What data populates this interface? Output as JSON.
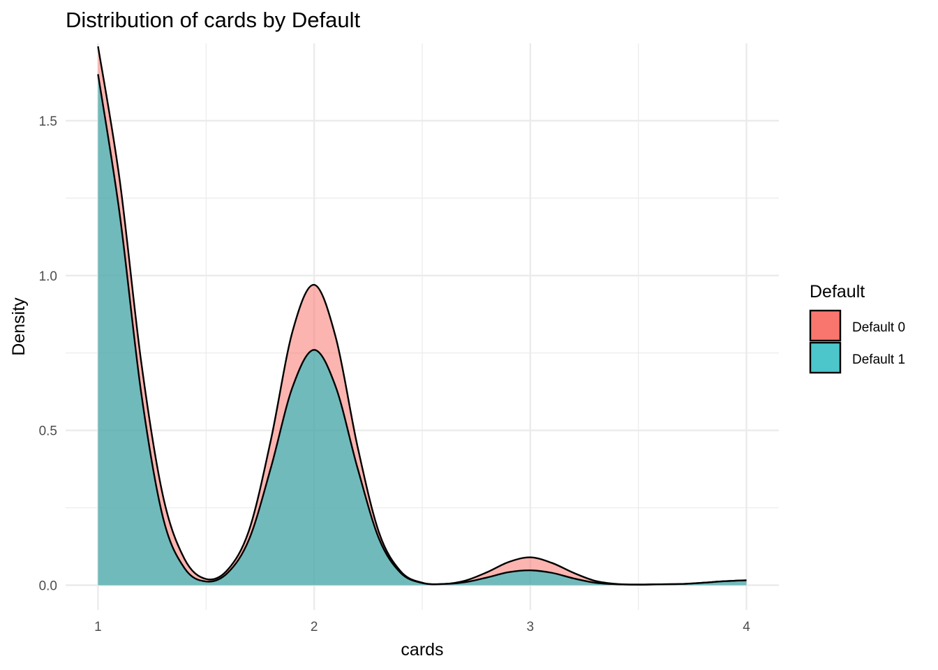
{
  "chart_data": {
    "type": "area",
    "title": "Distribution of cards by Default",
    "xlabel": "cards",
    "ylabel": "Density",
    "xlim": [
      0.85,
      4.15
    ],
    "ylim": [
      -0.08,
      1.75
    ],
    "x_ticks": [
      1,
      2,
      3,
      4
    ],
    "x_tick_labels": [
      "1",
      "2",
      "3",
      "4"
    ],
    "y_ticks": [
      0.0,
      0.5,
      1.0,
      1.5
    ],
    "y_tick_labels": [
      "0.0",
      "0.5",
      "1.0",
      "1.5"
    ],
    "grid": true,
    "legend": {
      "title": "Default",
      "position": "right"
    },
    "series": [
      {
        "name": "Default 0",
        "color": "#F8766D",
        "x": [
          1.0,
          1.1,
          1.2,
          1.3,
          1.4,
          1.5,
          1.6,
          1.7,
          1.8,
          1.9,
          2.0,
          2.1,
          2.2,
          2.3,
          2.4,
          2.5,
          2.6,
          2.7,
          2.8,
          2.9,
          3.0,
          3.1,
          3.2,
          3.3,
          3.4,
          3.5,
          3.6,
          3.7,
          3.8,
          3.9,
          4.0
        ],
        "y": [
          1.74,
          1.31,
          0.72,
          0.29,
          0.085,
          0.02,
          0.05,
          0.18,
          0.47,
          0.82,
          0.97,
          0.8,
          0.45,
          0.17,
          0.045,
          0.008,
          0.004,
          0.015,
          0.042,
          0.075,
          0.09,
          0.072,
          0.04,
          0.014,
          0.004,
          0.002,
          0.003,
          0.004,
          0.008,
          0.013,
          0.016
        ]
      },
      {
        "name": "Default 1",
        "color": "#00BFC4",
        "x": [
          1.0,
          1.1,
          1.2,
          1.3,
          1.4,
          1.5,
          1.6,
          1.7,
          1.8,
          1.9,
          2.0,
          2.1,
          2.2,
          2.3,
          2.4,
          2.5,
          2.6,
          2.7,
          2.8,
          2.9,
          3.0,
          3.1,
          3.2,
          3.3,
          3.4,
          3.5,
          3.6,
          3.7,
          3.8,
          3.9,
          4.0
        ],
        "y": [
          1.65,
          1.2,
          0.62,
          0.22,
          0.055,
          0.012,
          0.04,
          0.15,
          0.38,
          0.64,
          0.76,
          0.64,
          0.38,
          0.15,
          0.04,
          0.007,
          0.004,
          0.01,
          0.025,
          0.042,
          0.048,
          0.04,
          0.022,
          0.008,
          0.003,
          0.002,
          0.003,
          0.004,
          0.008,
          0.013,
          0.016
        ]
      }
    ]
  }
}
